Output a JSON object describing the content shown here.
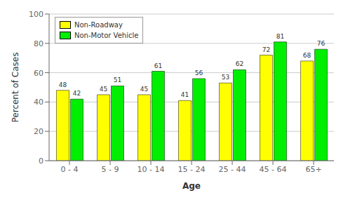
{
  "chart_data": {
    "type": "bar",
    "categories": [
      "0 - 4",
      "5 - 9",
      "10 - 14",
      "15 - 24",
      "25 - 44",
      "45 - 64",
      "65+"
    ],
    "series": [
      {
        "name": "Non-Roadway",
        "color": "#FFFF00",
        "values": [
          48,
          45,
          45,
          41,
          53,
          72,
          68
        ]
      },
      {
        "name": "Non-Motor Vehicle",
        "color": "#00EE00",
        "values": [
          42,
          51,
          61,
          56,
          62,
          81,
          76
        ]
      }
    ],
    "xlabel": "Age",
    "ylabel": "Percent of Cases",
    "ylim": [
      0,
      100
    ],
    "yticks": [
      0,
      20,
      40,
      60,
      80,
      100
    ],
    "grid": true,
    "legend": "upper left",
    "data_labels": true
  }
}
